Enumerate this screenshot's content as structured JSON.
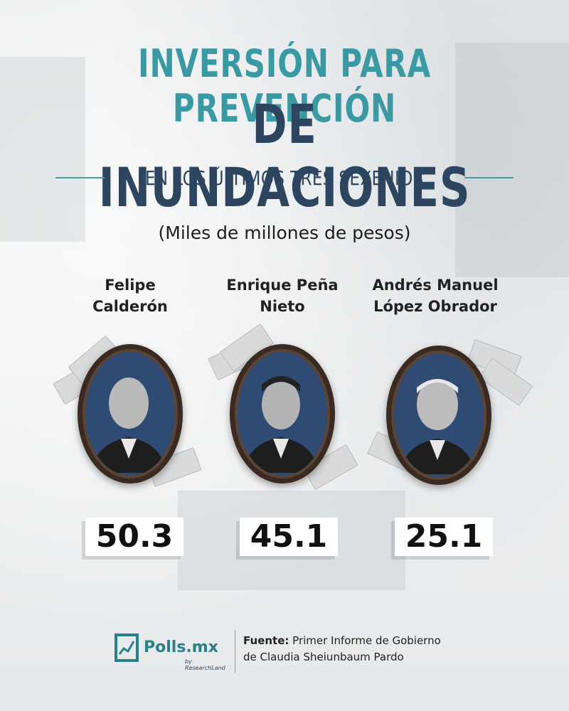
{
  "title": {
    "line1": "INVERSIÓN PARA PREVENCIÓN",
    "line2": "DE INUNDACIONES",
    "subtitle": "EN LOS ÚLTIMOS TRES SEXENIOS"
  },
  "unit": "(Miles de millones de pesos)",
  "people": [
    {
      "name_line1": "Felipe",
      "name_line2": "Calderón",
      "value": "50.3"
    },
    {
      "name_line1": "Enrique Peña",
      "name_line2": "Nieto",
      "value": "45.1"
    },
    {
      "name_line1": "Andrés Manuel",
      "name_line2": "López Obrador",
      "value": "25.1"
    }
  ],
  "footer": {
    "logo": "Polls.mx",
    "logo_sub": "by ResearchLand",
    "source_label": "Fuente:",
    "source_text": "Primer Informe de Gobierno de Claudia Sheiunbaum Pardo"
  },
  "colors": {
    "teal": "#3a9aa3",
    "navy": "#2e4560"
  }
}
